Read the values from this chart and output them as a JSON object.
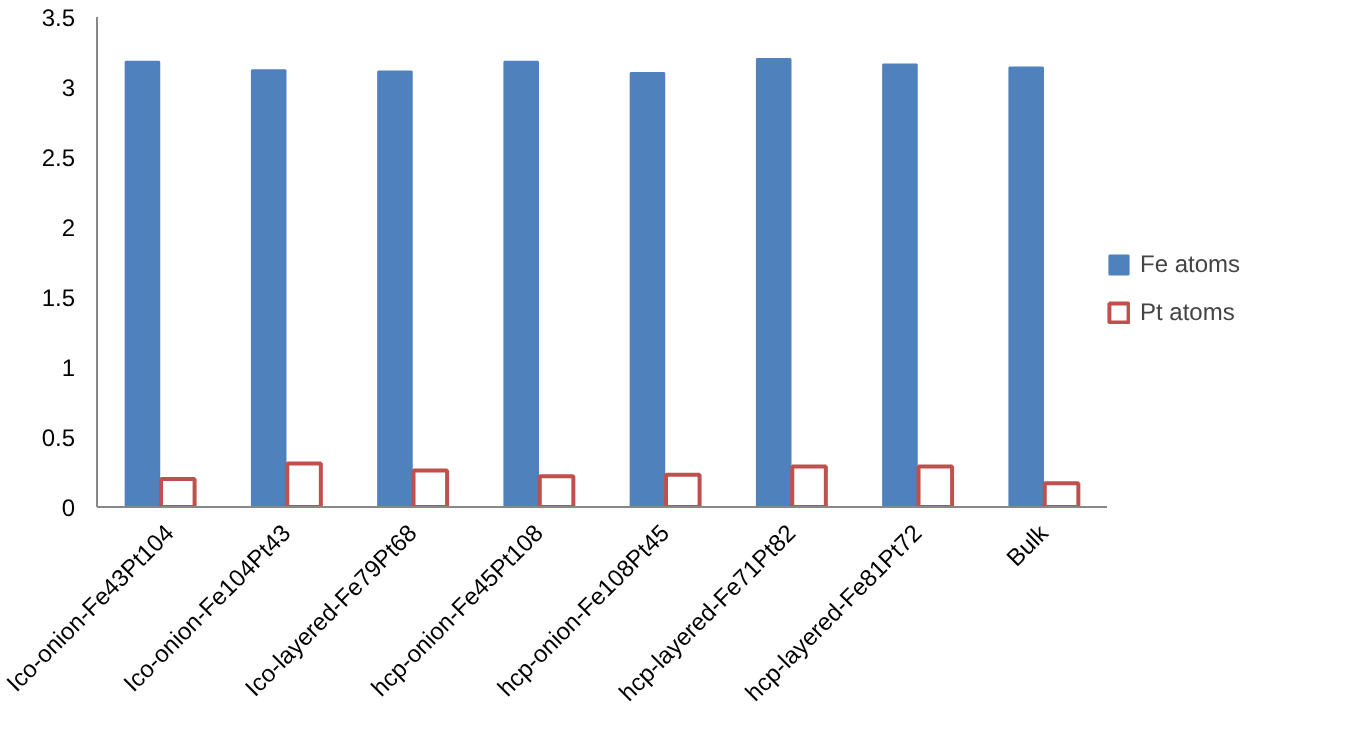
{
  "chart_data": {
    "type": "bar",
    "categories": [
      "Ico-onion-Fe43Pt104",
      "Ico-onion-Fe104Pt43",
      "Ico-layered-Fe79Pt68",
      "hcp-onion-Fe45Pt108",
      "hcp-onion-Fe108Pt45",
      "hcp-layered-Fe71Pt82",
      "hcp-layered-Fe81Pt72",
      "Bulk"
    ],
    "series": [
      {
        "name": "Fe atoms",
        "color": "#4f81bd",
        "values": [
          3.18,
          3.12,
          3.11,
          3.18,
          3.1,
          3.2,
          3.16,
          3.14
        ]
      },
      {
        "name": "Pt atoms",
        "color": "#c0504d",
        "values": [
          0.2,
          0.31,
          0.26,
          0.22,
          0.23,
          0.29,
          0.29,
          0.17
        ]
      }
    ],
    "ylim": [
      0,
      3.5
    ],
    "yticks": [
      0,
      0.5,
      1,
      1.5,
      2,
      2.5,
      3,
      3.5
    ],
    "grid": false,
    "legend": "right"
  }
}
